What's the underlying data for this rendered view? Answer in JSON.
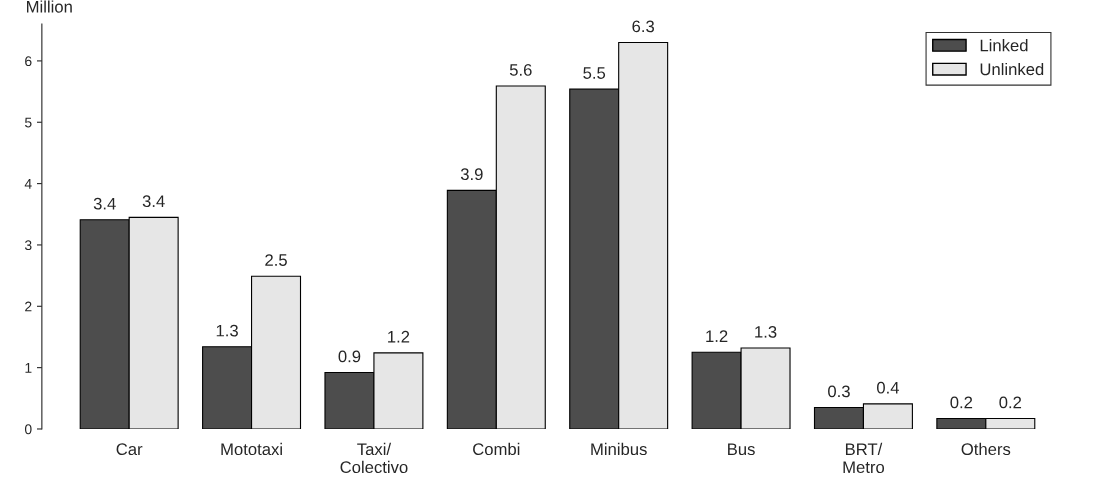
{
  "chart_data": {
    "type": "bar",
    "ylabel": "Million",
    "categories": [
      "Car",
      "Mototaxi",
      "Taxi/\nColectivo",
      "Combi",
      "Minibus",
      "Bus",
      "BRT/\nMetro",
      "Others"
    ],
    "series": [
      {
        "name": "Linked",
        "color": "#4d4d4d",
        "values": [
          3.41,
          1.34,
          0.92,
          3.89,
          5.54,
          1.25,
          0.35,
          0.17
        ],
        "value_labels": [
          "3.4",
          "1.3",
          "0.9",
          "3.9",
          "5.5",
          "1.2",
          "0.3",
          "0.2"
        ]
      },
      {
        "name": "Unlinked",
        "color": "#e6e6e6",
        "values": [
          3.45,
          2.49,
          1.24,
          5.59,
          6.3,
          1.32,
          0.41,
          0.17
        ],
        "value_labels": [
          "3.4",
          "2.5",
          "1.2",
          "5.6",
          "6.3",
          "1.3",
          "0.4",
          "0.2"
        ]
      }
    ],
    "ylim": [
      0,
      6.6
    ],
    "yticks": [
      0,
      1,
      2,
      3,
      4,
      5,
      6
    ],
    "grid": false,
    "legend": "top right"
  }
}
